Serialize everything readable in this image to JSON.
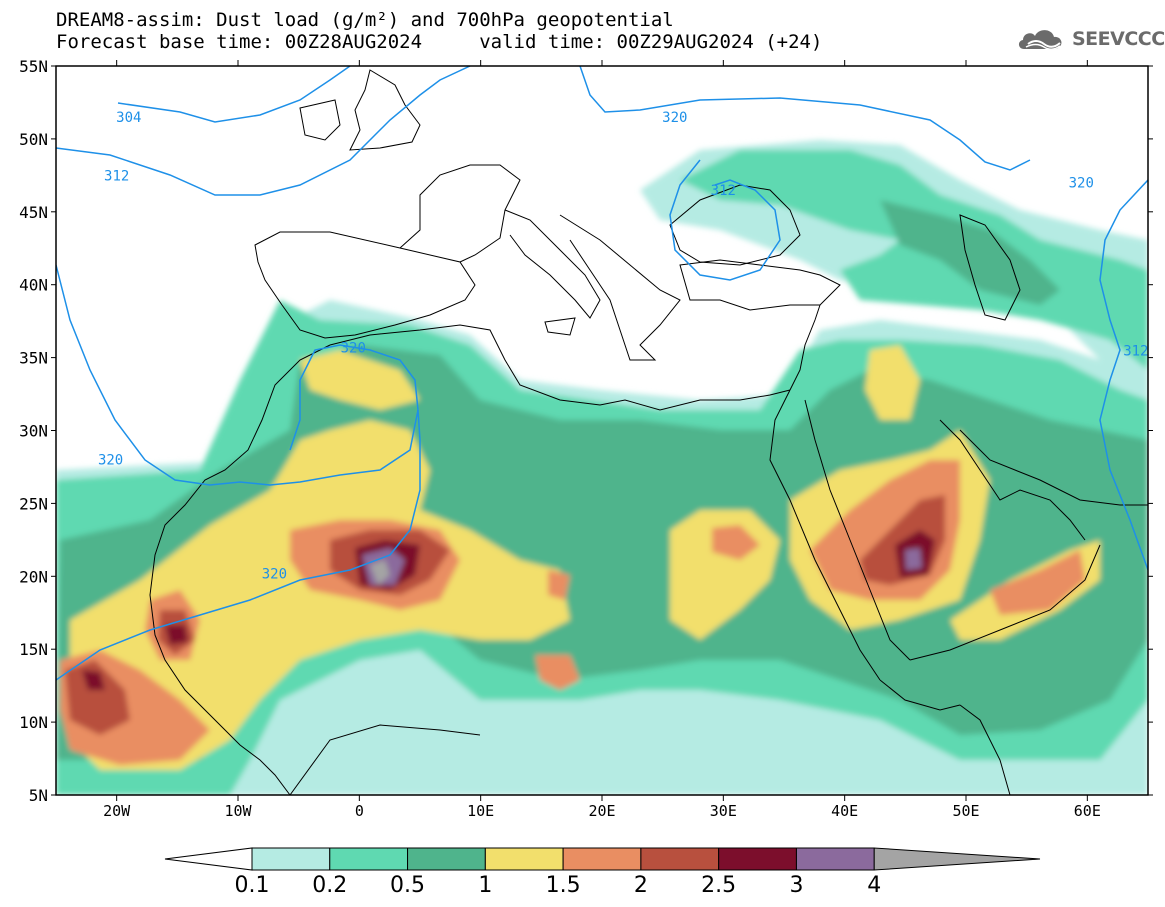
{
  "title_line1": "DREAM8-assim: Dust load (g/m²) and 700hPa geopotential",
  "title_line2": "Forecast base time: 00Z28AUG2024     valid time: 00Z29AUG2024 (+24)",
  "logo": {
    "text": "SEEVCCC",
    "icon": "cloud-logo-icon"
  },
  "map": {
    "lon_range": [
      -25,
      65
    ],
    "lat_range": [
      5,
      55
    ],
    "lat_labels": [
      "55N",
      "50N",
      "45N",
      "40N",
      "35N",
      "30N",
      "25N",
      "20N",
      "15N",
      "10N",
      "5N"
    ],
    "lat_values": [
      55,
      50,
      45,
      40,
      35,
      30,
      25,
      20,
      15,
      10,
      5
    ],
    "lon_labels": [
      "20W",
      "10W",
      "0",
      "10E",
      "20E",
      "30E",
      "40E",
      "50E",
      "60E"
    ],
    "lon_values": [
      -20,
      -10,
      0,
      10,
      20,
      30,
      40,
      50,
      60
    ]
  },
  "contours": [
    {
      "label": "304",
      "lon": -19,
      "lat": 51.5
    },
    {
      "label": "312",
      "lon": -20,
      "lat": 47.5
    },
    {
      "label": "320",
      "lon": 26,
      "lat": 51.5
    },
    {
      "label": "320",
      "lon": 59.5,
      "lat": 47
    },
    {
      "label": "312",
      "lon": 30,
      "lat": 46.5
    },
    {
      "label": "320",
      "lon": -0.5,
      "lat": 35.7
    },
    {
      "label": "320",
      "lon": -20.5,
      "lat": 28
    },
    {
      "label": "320",
      "lon": -7,
      "lat": 20.2
    },
    {
      "label": "312",
      "lon": 64,
      "lat": 35.5
    }
  ],
  "colorbar": {
    "labels": [
      "0.1",
      "0.2",
      "0.5",
      "1",
      "1.5",
      "2",
      "2.5",
      "3",
      "4"
    ],
    "colors": [
      "#b5ebe3",
      "#5fd9b1",
      "#4fb48c",
      "#f2df6c",
      "#e98e62",
      "#b8503e",
      "#7c0e2c",
      "#8b6a9d",
      "#a4a4a4"
    ],
    "under_color": "#ffffff",
    "over_color": "#a4a4a4"
  }
}
